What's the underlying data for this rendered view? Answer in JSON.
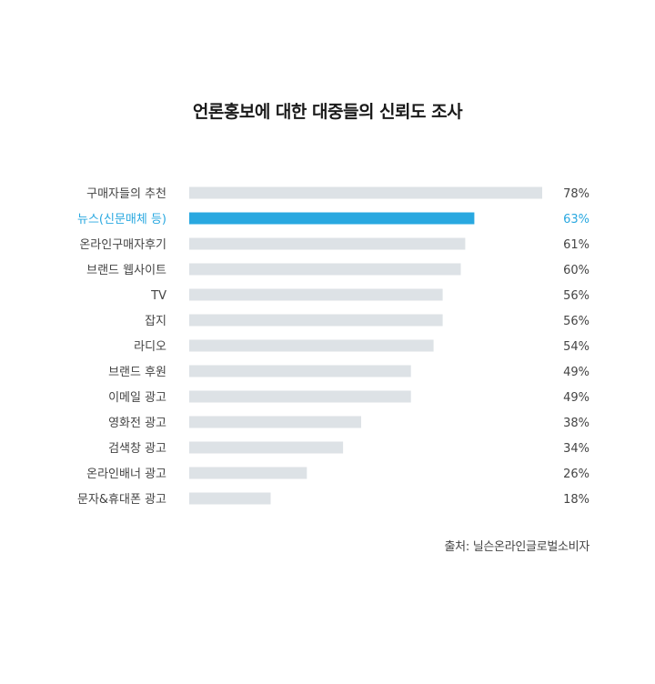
{
  "chart_data": {
    "type": "bar",
    "orientation": "horizontal",
    "title": "언론홍보에 대한 대중들의 신뢰도 조사",
    "categories": [
      "구매자들의 추천",
      "뉴스(신문매체 등)",
      "온라인구매자후기",
      "브랜드 웹사이트",
      "TV",
      "잡지",
      "라디오",
      "브랜드 후원",
      "이메일 광고",
      "영화전 광고",
      "검색창 광고",
      "온라인배너 광고",
      "문자&휴대폰 광고"
    ],
    "values": [
      78,
      63,
      61,
      60,
      56,
      56,
      54,
      49,
      49,
      38,
      34,
      26,
      18
    ],
    "value_labels": [
      "78%",
      "63%",
      "61%",
      "60%",
      "56%",
      "56%",
      "54%",
      "49%",
      "49%",
      "38%",
      "34%",
      "26%",
      "18%"
    ],
    "highlight_index": 1,
    "colors": {
      "bar": "#dde2e6",
      "highlight": "#29a8e0",
      "label": "#444444",
      "value": "#444444"
    },
    "xlim": [
      0,
      78
    ],
    "grid": false,
    "legend": "none",
    "source": "출처: 닐슨온라인글로벌소비자"
  }
}
